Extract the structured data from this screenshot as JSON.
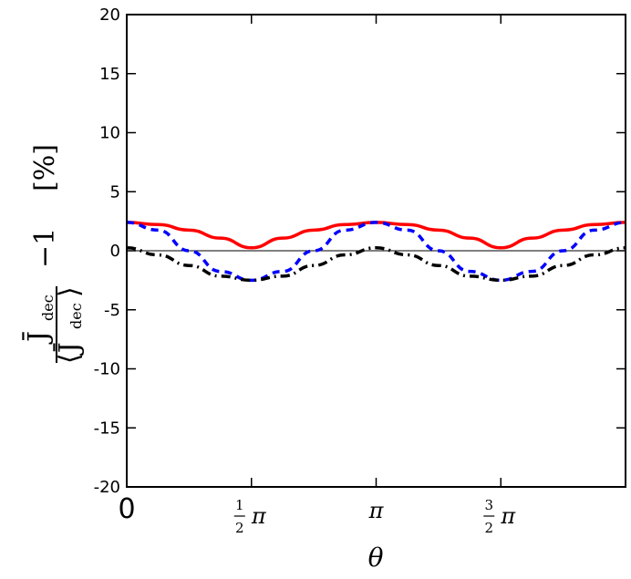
{
  "chart_data": {
    "type": "line",
    "xlabel": "θ",
    "ylabel": {
      "numerator": "J̄",
      "numerator_sub": "dec",
      "denominator": "⟨J̄",
      "denominator_sub": "dec",
      "denominator_close": "⟩",
      "minus_one": "−1",
      "unit": "[%]"
    },
    "xlim": [
      0,
      6.2832
    ],
    "ylim": [
      -20,
      20
    ],
    "yticks": [
      20,
      15,
      10,
      5,
      0,
      -5,
      -10,
      -15,
      -20
    ],
    "xtick_labels": [
      {
        "x": 0,
        "label": "0"
      },
      {
        "x": 1.5708,
        "label": "½π",
        "numerator": "1",
        "denominator": "2",
        "symbol": "π"
      },
      {
        "x": 3.1416,
        "label": "π",
        "symbol": "π"
      },
      {
        "x": 4.7124,
        "label": "³⁄₂π",
        "numerator": "3",
        "denominator": "2",
        "symbol": "π"
      }
    ],
    "grid": false,
    "reference_line": 0,
    "series": [
      {
        "style": "solid",
        "color": "#ff0000",
        "x": [
          0,
          0.3927,
          0.7854,
          1.1781,
          1.5708,
          1.9635,
          2.3562,
          2.7489,
          3.1416,
          3.5343,
          3.927,
          4.3197,
          4.7124,
          5.1051,
          5.4978,
          5.8905,
          6.2832
        ],
        "values": [
          2.4,
          2.22,
          1.75,
          1.07,
          0.25,
          1.07,
          1.75,
          2.22,
          2.4,
          2.22,
          1.75,
          1.07,
          0.25,
          1.07,
          1.75,
          2.22,
          2.4
        ]
      },
      {
        "style": "dashed",
        "color": "#0000ff",
        "x": [
          0,
          0.3927,
          0.7854,
          1.1781,
          1.5708,
          1.9635,
          2.3562,
          2.7489,
          3.1416,
          3.5343,
          3.927,
          4.3197,
          4.7124,
          5.1051,
          5.4978,
          5.8905,
          6.2832
        ],
        "values": [
          2.4,
          1.75,
          0.0,
          -1.75,
          -2.5,
          -1.75,
          0.0,
          1.75,
          2.4,
          1.75,
          0.0,
          -1.75,
          -2.5,
          -1.75,
          0.0,
          1.75,
          2.4
        ]
      },
      {
        "style": "dashdot",
        "color": "#000000",
        "x": [
          0,
          0.3927,
          0.7854,
          1.1781,
          1.5708,
          1.9635,
          2.3562,
          2.7489,
          3.1416,
          3.5343,
          3.927,
          4.3197,
          4.7124,
          5.1051,
          5.4978,
          5.8905,
          6.2832
        ],
        "values": [
          0.25,
          -0.35,
          -1.25,
          -2.15,
          -2.5,
          -2.15,
          -1.25,
          -0.35,
          0.25,
          -0.35,
          -1.25,
          -2.15,
          -2.5,
          -2.15,
          -1.25,
          -0.35,
          0.25
        ]
      }
    ]
  }
}
